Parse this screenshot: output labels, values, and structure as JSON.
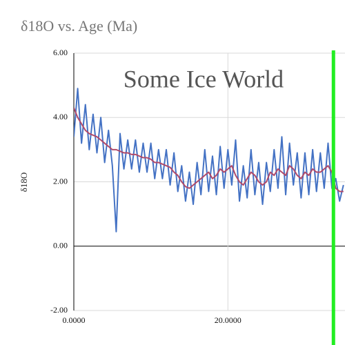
{
  "chart_data": {
    "type": "line",
    "title": "δ18O  vs. Age (Ma)",
    "y_label": "δ18O",
    "annotation": "Some Ice World",
    "x": [
      0,
      0.5,
      1,
      1.5,
      2,
      2.5,
      3,
      3.5,
      4,
      4.5,
      5,
      5.5,
      6,
      6.5,
      7,
      7.5,
      8,
      8.5,
      9,
      9.5,
      10,
      10.5,
      11,
      11.5,
      12,
      12.5,
      13,
      13.5,
      14,
      14.5,
      15,
      15.5,
      16,
      16.5,
      17,
      17.5,
      18,
      18.5,
      19,
      19.5,
      20,
      20.5,
      21,
      21.5,
      22,
      22.5,
      23,
      23.5,
      24,
      24.5,
      25,
      25.5,
      26,
      26.5,
      27,
      27.5,
      28,
      28.5,
      29,
      29.5,
      30,
      30.5,
      31,
      31.5,
      32,
      32.5,
      33,
      33.5,
      34,
      34.5,
      35
    ],
    "series": [
      {
        "color": "#4472c4",
        "values": [
          3.4,
          4.9,
          3.2,
          4.4,
          3.0,
          4.1,
          2.9,
          4.0,
          2.6,
          3.6,
          2.5,
          0.45,
          3.5,
          2.4,
          3.3,
          2.4,
          3.3,
          2.3,
          3.2,
          2.3,
          3.2,
          2.1,
          3.0,
          2.1,
          3.0,
          1.9,
          2.9,
          1.7,
          2.5,
          1.4,
          2.3,
          1.3,
          2.6,
          1.6,
          3.0,
          1.7,
          2.8,
          1.6,
          3.1,
          1.8,
          3.0,
          1.9,
          3.3,
          1.4,
          2.5,
          1.5,
          3.0,
          1.6,
          2.6,
          1.3,
          2.6,
          1.7,
          3.0,
          1.8,
          3.4,
          1.6,
          3.2,
          1.9,
          2.9,
          1.5,
          2.9,
          1.6,
          3.0,
          1.7,
          2.9,
          1.8,
          3.2,
          1.8,
          2.1,
          1.4,
          1.9
        ]
      },
      {
        "color": "#b04a6a",
        "values": [
          4.3,
          4.0,
          3.8,
          3.6,
          3.5,
          3.45,
          3.4,
          3.3,
          3.2,
          3.1,
          3.0,
          3.0,
          2.95,
          2.9,
          2.9,
          2.85,
          2.85,
          2.8,
          2.75,
          2.75,
          2.7,
          2.6,
          2.6,
          2.55,
          2.5,
          2.45,
          2.3,
          2.2,
          2.0,
          1.85,
          1.8,
          1.9,
          2.0,
          2.1,
          2.2,
          2.3,
          2.1,
          2.2,
          2.4,
          2.3,
          2.4,
          2.5,
          2.2,
          2.0,
          1.9,
          2.1,
          2.3,
          2.2,
          2.0,
          1.9,
          2.0,
          2.3,
          2.2,
          2.4,
          2.3,
          2.2,
          2.5,
          2.4,
          2.2,
          2.1,
          2.3,
          2.2,
          2.4,
          2.3,
          2.3,
          2.4,
          2.5,
          2.3,
          1.8,
          1.7,
          1.7
        ]
      }
    ],
    "vline": {
      "x": 33.7,
      "color": "#22ee22"
    },
    "xlim": [
      0,
      35.2
    ],
    "ylim": [
      -2,
      6
    ],
    "xticks": [
      {
        "value": 0,
        "label": "0.0000"
      },
      {
        "value": 20,
        "label": "20.0000"
      }
    ],
    "yticks": [
      {
        "value": 6,
        "label": "6.00"
      },
      {
        "value": 4,
        "label": "4.00"
      },
      {
        "value": 2,
        "label": "2.00"
      },
      {
        "value": 0,
        "label": "0.00"
      },
      {
        "value": -2,
        "label": "-2.00"
      }
    ],
    "grid": true
  }
}
